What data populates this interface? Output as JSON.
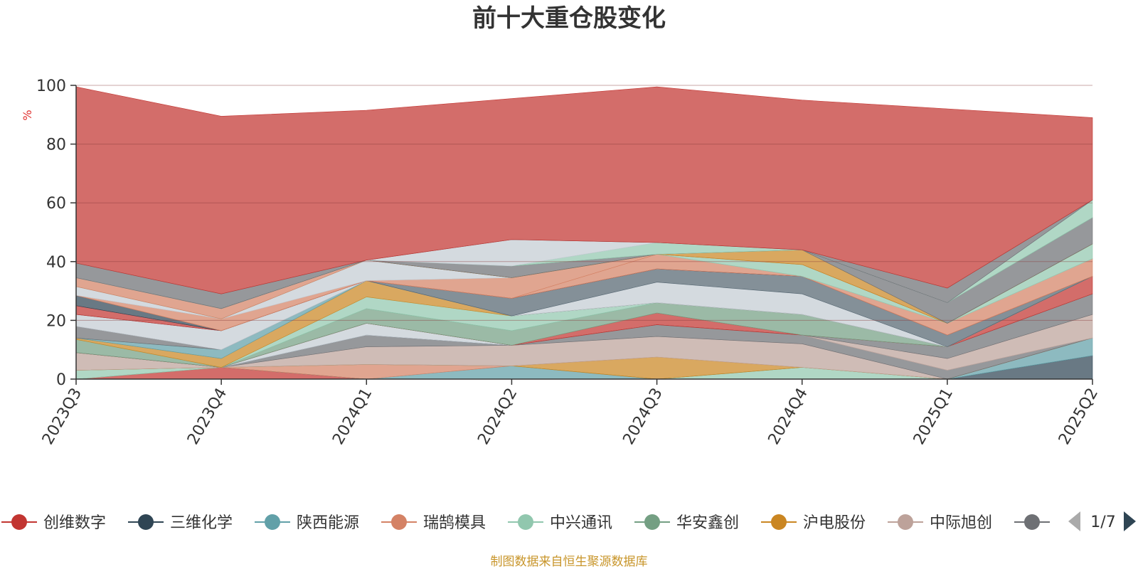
{
  "chart_data": {
    "type": "area",
    "title": "前十大重仓股变化",
    "unit_label": "%",
    "ylim": [
      0,
      100
    ],
    "y_ticks": [
      "0",
      "20",
      "40",
      "60",
      "80",
      "100"
    ],
    "categories": [
      "2023Q3",
      "2023Q4",
      "2024Q1",
      "2024Q2",
      "2024Q3",
      "2024Q4",
      "2025Q1",
      "2025Q2"
    ],
    "series": [
      {
        "name": "创维数字",
        "color": "#c23531",
        "values": [
          0,
          4,
          0,
          0,
          0,
          0,
          0,
          0
        ]
      },
      {
        "name": "三维化学",
        "color": "#2f4554",
        "values": [
          0,
          0,
          0,
          0,
          0,
          0,
          0,
          8
        ]
      },
      {
        "name": "陕西能源",
        "color": "#61a0a8",
        "values": [
          0,
          0,
          0,
          4.5,
          0,
          0,
          0,
          6
        ]
      },
      {
        "name": "瑞鹄模具",
        "color": "#d48265",
        "values": [
          0,
          0,
          5,
          0,
          0,
          0,
          0,
          0
        ]
      },
      {
        "name": "中兴通讯",
        "color": "#91c7ae",
        "values": [
          3,
          0,
          0,
          0,
          0,
          4,
          0,
          0
        ]
      },
      {
        "name": "华安鑫创",
        "color": "#749f83",
        "values": [
          0,
          0,
          0,
          0,
          0,
          0,
          0,
          0
        ]
      },
      {
        "name": "沪电股份",
        "color": "#ca8622",
        "values": [
          0,
          0,
          0,
          0,
          7.5,
          0,
          0,
          0
        ]
      },
      {
        "name": "中际旭创",
        "color": "#bda29a",
        "values": [
          6,
          0,
          6,
          7,
          7,
          8,
          0,
          0
        ]
      },
      {
        "name": "",
        "color": "#6e7074",
        "values": [
          0,
          0,
          4,
          0,
          4,
          3,
          3,
          0
        ]
      },
      {
        "name": "",
        "color": "#546570",
        "values": [
          0,
          0,
          0,
          0,
          0,
          0,
          0,
          0
        ]
      },
      {
        "name": "",
        "color": "#c4ccd3",
        "values": [
          0,
          0,
          4,
          0,
          0,
          0,
          0,
          0
        ]
      },
      {
        "name": "",
        "color": "#bda29a",
        "values": [
          0,
          0,
          0,
          0,
          0,
          0,
          4,
          8
        ]
      },
      {
        "name": "",
        "color": "#6e7074",
        "values": [
          0,
          0,
          0,
          0,
          0,
          0,
          4,
          7
        ]
      },
      {
        "name": "",
        "color": "#c23531",
        "values": [
          0,
          0,
          0,
          0,
          4,
          0,
          0,
          6
        ]
      },
      {
        "name": "",
        "color": "#749f83",
        "values": [
          4.5,
          0,
          5,
          5,
          3.5,
          7,
          0,
          0
        ]
      },
      {
        "name": "",
        "color": "#91c7ae",
        "values": [
          0,
          0,
          4,
          5,
          0,
          0,
          0,
          0
        ]
      },
      {
        "name": "",
        "color": "#ca8622",
        "values": [
          0.5,
          3,
          5.5,
          0,
          0,
          0,
          0,
          0
        ]
      },
      {
        "name": "",
        "color": "#61a0a8",
        "values": [
          0,
          3,
          0,
          0,
          0,
          0,
          0,
          0
        ]
      },
      {
        "name": "",
        "color": "#6e7074",
        "values": [
          4,
          0,
          0,
          0,
          0,
          0,
          0,
          0
        ]
      },
      {
        "name": "",
        "color": "#c4ccd3",
        "values": [
          4,
          6.5,
          0,
          0,
          7,
          7,
          0,
          0
        ]
      },
      {
        "name": "",
        "color": "#546570",
        "values": [
          0,
          0,
          0,
          6,
          4.5,
          6,
          4,
          0
        ]
      },
      {
        "name": "",
        "color": "#c23531",
        "values": [
          3,
          0,
          0,
          0,
          0,
          0,
          0,
          0
        ]
      },
      {
        "name": "",
        "color": "#2f4554",
        "values": [
          3.5,
          0,
          0,
          0,
          0,
          0,
          0,
          0
        ]
      },
      {
        "name": "",
        "color": "#d48265",
        "values": [
          0,
          0,
          0,
          0,
          5,
          0,
          0,
          0
        ]
      },
      {
        "name": "",
        "color": "#d48265",
        "values": [
          0,
          4,
          0,
          7,
          0,
          0,
          4,
          6
        ]
      },
      {
        "name": "",
        "color": "#c4ccd3",
        "values": [
          3,
          0,
          7,
          0,
          0,
          0,
          0,
          0
        ]
      },
      {
        "name": "",
        "color": "#91c7ae",
        "values": [
          0,
          0,
          0,
          0,
          0,
          4,
          0,
          5
        ]
      },
      {
        "name": "",
        "color": "#d48265",
        "values": [
          3,
          3.5,
          0,
          0,
          0,
          0,
          0,
          0
        ]
      },
      {
        "name": "",
        "color": "#ca8622",
        "values": [
          0,
          0,
          0,
          0,
          0,
          5,
          0,
          0
        ]
      },
      {
        "name": "",
        "color": "#6e7074",
        "values": [
          0,
          0,
          0,
          4,
          0,
          0,
          7,
          9
        ]
      },
      {
        "name": "",
        "color": "#91c7ae",
        "values": [
          0,
          0,
          0,
          0,
          4,
          0,
          0,
          6
        ]
      },
      {
        "name": "",
        "color": "#c4ccd3",
        "values": [
          0,
          0,
          0,
          9,
          0,
          0,
          0,
          0
        ]
      },
      {
        "name": "",
        "color": "#6e7074",
        "values": [
          5,
          5,
          0,
          0,
          0,
          0,
          5,
          0
        ]
      },
      {
        "name": "",
        "color": "#c23531",
        "values": [
          60,
          60.5,
          51,
          48,
          53,
          51,
          61,
          28
        ]
      }
    ]
  },
  "legend": {
    "items": [
      {
        "label": "创维数字",
        "color": "#c23531"
      },
      {
        "label": "三维化学",
        "color": "#2f4554"
      },
      {
        "label": "陕西能源",
        "color": "#61a0a8"
      },
      {
        "label": "瑞鹄模具",
        "color": "#d48265"
      },
      {
        "label": "中兴通讯",
        "color": "#91c7ae"
      },
      {
        "label": "华安鑫创",
        "color": "#749f83"
      },
      {
        "label": "沪电股份",
        "color": "#ca8622"
      },
      {
        "label": "中际旭创",
        "color": "#bda29a"
      },
      {
        "label": "",
        "color": "#6e7074"
      }
    ],
    "page_indicator": "1/7"
  },
  "source_text": "制图数据来自恒生聚源数据库"
}
